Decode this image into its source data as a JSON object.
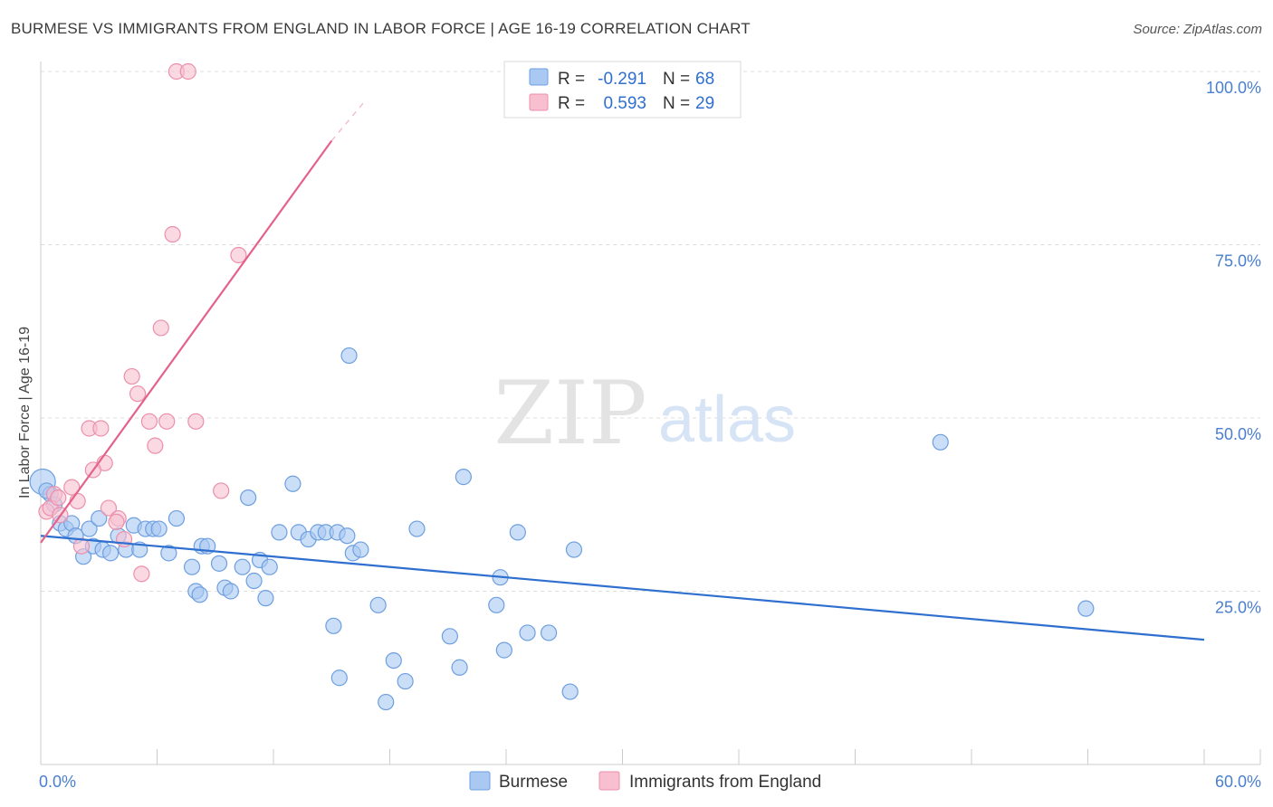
{
  "title": "BURMESE VS IMMIGRANTS FROM ENGLAND IN LABOR FORCE | AGE 16-19 CORRELATION CHART",
  "source": "Source: ZipAtlas.com",
  "watermark": {
    "zip": "ZIP",
    "atlas": "atlas"
  },
  "colors": {
    "burmese_fill": "#a9c8f2",
    "burmese_stroke": "#6d9fe0",
    "burmese_line": "#2e6fcf",
    "england_fill": "#f7bfd0",
    "england_stroke": "#ec8fab",
    "england_line": "#e4628a",
    "tick_text": "#4a7fcf",
    "value_text": "#2e6fcf"
  },
  "stats": {
    "r_label": "R =",
    "n_label": "N =",
    "burmese": {
      "r": "-0.291",
      "n": "68"
    },
    "england": {
      "r": "0.593",
      "n": "29"
    }
  },
  "chart_data": {
    "type": "scatter",
    "title": "BURMESE VS IMMIGRANTS FROM ENGLAND IN LABOR FORCE | AGE 16-19 CORRELATION CHART",
    "xlabel": "",
    "ylabel": "In Labor Force | Age 16-19",
    "xlim": [
      0,
      60
    ],
    "ylim": [
      0,
      100
    ],
    "x_tick_labels": [
      "0.0%",
      "60.0%"
    ],
    "y_ticks": [
      25,
      50,
      75,
      100
    ],
    "y_tick_labels": [
      "25.0%",
      "50.0%",
      "75.0%",
      "100.0%"
    ],
    "legend": [
      "Burmese",
      "Immigrants from England"
    ],
    "series": [
      {
        "name": "Burmese",
        "trend": {
          "x": [
            0,
            60
          ],
          "y": [
            33.0,
            18.0
          ]
        },
        "points": [
          [
            0.1,
            40.8
          ],
          [
            0.5,
            39.0
          ],
          [
            0.7,
            37.5
          ],
          [
            1.0,
            34.8
          ],
          [
            1.3,
            34.0
          ],
          [
            1.6,
            34.8
          ],
          [
            1.8,
            33.0
          ],
          [
            2.2,
            30.0
          ],
          [
            2.5,
            34.0
          ],
          [
            2.7,
            31.5
          ],
          [
            3.0,
            35.5
          ],
          [
            3.2,
            31.0
          ],
          [
            3.6,
            30.5
          ],
          [
            4.0,
            33.0
          ],
          [
            4.4,
            31.0
          ],
          [
            4.8,
            34.5
          ],
          [
            5.1,
            31.0
          ],
          [
            5.4,
            34.0
          ],
          [
            5.8,
            34.0
          ],
          [
            6.1,
            34.0
          ],
          [
            6.6,
            30.5
          ],
          [
            7.0,
            35.5
          ],
          [
            7.8,
            28.5
          ],
          [
            8.3,
            31.5
          ],
          [
            8.0,
            25.0
          ],
          [
            8.2,
            24.5
          ],
          [
            8.6,
            31.5
          ],
          [
            9.2,
            29.0
          ],
          [
            9.5,
            25.5
          ],
          [
            9.8,
            25.0
          ],
          [
            10.4,
            28.5
          ],
          [
            10.7,
            38.5
          ],
          [
            11.0,
            26.5
          ],
          [
            11.3,
            29.5
          ],
          [
            11.6,
            24.0
          ],
          [
            11.8,
            28.5
          ],
          [
            12.3,
            33.5
          ],
          [
            13.0,
            40.5
          ],
          [
            13.3,
            33.5
          ],
          [
            13.8,
            32.5
          ],
          [
            14.3,
            33.5
          ],
          [
            14.7,
            33.5
          ],
          [
            15.3,
            33.5
          ],
          [
            15.8,
            33.0
          ],
          [
            16.1,
            30.5
          ],
          [
            15.1,
            20.0
          ],
          [
            15.4,
            12.5
          ],
          [
            15.9,
            59.0
          ],
          [
            16.5,
            31.0
          ],
          [
            17.4,
            23.0
          ],
          [
            17.8,
            9.0
          ],
          [
            18.2,
            15.0
          ],
          [
            18.8,
            12.0
          ],
          [
            19.4,
            34.0
          ],
          [
            21.1,
            18.5
          ],
          [
            21.6,
            14.0
          ],
          [
            21.8,
            41.5
          ],
          [
            23.5,
            23.0
          ],
          [
            23.7,
            27.0
          ],
          [
            23.9,
            16.5
          ],
          [
            24.6,
            33.5
          ],
          [
            25.1,
            19.0
          ],
          [
            26.2,
            19.0
          ],
          [
            27.3,
            10.5
          ],
          [
            27.5,
            31.0
          ],
          [
            46.4,
            46.5
          ],
          [
            53.9,
            22.5
          ],
          [
            0.3,
            39.5
          ]
        ]
      },
      {
        "name": "Immigrants from England",
        "trend": {
          "x": [
            0,
            15.0
          ],
          "y": [
            32.0,
            90.0
          ],
          "dashed_to": {
            "x": 16.8,
            "y": 96.0
          }
        },
        "points": [
          [
            7.0,
            100.0
          ],
          [
            7.6,
            100.0
          ],
          [
            6.8,
            76.5
          ],
          [
            10.2,
            73.5
          ],
          [
            6.2,
            63.0
          ],
          [
            4.7,
            56.0
          ],
          [
            5.0,
            53.5
          ],
          [
            5.6,
            49.5
          ],
          [
            6.5,
            49.5
          ],
          [
            8.0,
            49.5
          ],
          [
            2.5,
            48.5
          ],
          [
            3.1,
            48.5
          ],
          [
            5.9,
            46.0
          ],
          [
            3.3,
            43.5
          ],
          [
            2.7,
            42.5
          ],
          [
            1.6,
            40.0
          ],
          [
            9.3,
            39.5
          ],
          [
            0.7,
            39.0
          ],
          [
            1.9,
            38.0
          ],
          [
            3.5,
            37.0
          ],
          [
            0.3,
            36.5
          ],
          [
            0.5,
            37.0
          ],
          [
            4.0,
            35.5
          ],
          [
            3.9,
            35.0
          ],
          [
            4.3,
            32.5
          ],
          [
            2.1,
            31.5
          ],
          [
            5.2,
            27.5
          ],
          [
            1.0,
            36.0
          ],
          [
            0.9,
            38.5
          ]
        ]
      }
    ]
  }
}
